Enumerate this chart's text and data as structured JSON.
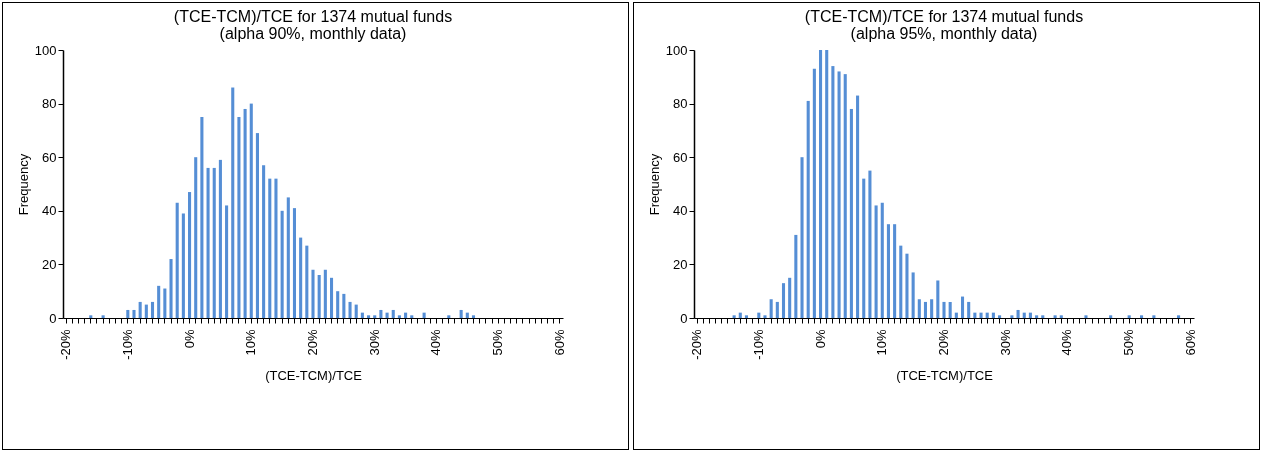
{
  "chart_data": [
    {
      "type": "bar",
      "title": "(TCE-TCM)/TCE  for 1374 mutual funds",
      "subtitle": "(alpha 90%, monthly data)",
      "xlabel": "(TCE-TCM)/TCE",
      "ylabel": "Frequency",
      "categories": [
        "-20%",
        null,
        null,
        null,
        null,
        null,
        null,
        null,
        null,
        null,
        "-10%",
        null,
        null,
        null,
        null,
        null,
        null,
        null,
        null,
        null,
        "0%",
        null,
        null,
        null,
        null,
        null,
        null,
        null,
        null,
        null,
        "10%",
        null,
        null,
        null,
        null,
        null,
        null,
        null,
        null,
        null,
        "20%",
        null,
        null,
        null,
        null,
        null,
        null,
        null,
        null,
        null,
        "30%",
        null,
        null,
        null,
        null,
        null,
        null,
        null,
        null,
        null,
        "40%",
        null,
        null,
        null,
        null,
        null,
        null,
        null,
        null,
        null,
        "50%",
        null,
        null,
        null,
        null,
        null,
        null,
        null,
        null,
        null,
        "60%"
      ],
      "values": [
        0,
        0,
        0,
        0,
        1,
        0,
        1,
        0,
        0,
        0,
        3,
        3,
        6,
        5,
        6,
        12,
        11,
        22,
        43,
        39,
        47,
        60,
        75,
        56,
        56,
        59,
        42,
        86,
        75,
        78,
        80,
        69,
        57,
        52,
        52,
        40,
        45,
        41,
        30,
        27,
        18,
        16,
        18,
        15,
        10,
        9,
        6,
        5,
        2,
        1,
        1,
        3,
        2,
        3,
        1,
        2,
        1,
        0,
        2,
        0,
        0,
        0,
        1,
        0,
        3,
        2,
        1,
        0,
        0,
        0,
        0,
        0,
        0,
        0,
        0,
        0,
        0,
        0,
        0,
        0,
        0
      ],
      "color": "#558ed5",
      "ylim": [
        0,
        100
      ],
      "yticks": [
        0,
        20,
        40,
        60,
        80,
        100
      ]
    },
    {
      "type": "bar",
      "title": "(TCE-TCM)/TCE  for 1374 mutual funds",
      "subtitle": "(alpha 95%, monthly data)",
      "xlabel": "(TCE-TCM)/TCE",
      "ylabel": "Frequency",
      "categories": [
        "-20%",
        null,
        null,
        null,
        null,
        null,
        null,
        null,
        null,
        null,
        "-10%",
        null,
        null,
        null,
        null,
        null,
        null,
        null,
        null,
        null,
        "0%",
        null,
        null,
        null,
        null,
        null,
        null,
        null,
        null,
        null,
        "10%",
        null,
        null,
        null,
        null,
        null,
        null,
        null,
        null,
        null,
        "20%",
        null,
        null,
        null,
        null,
        null,
        null,
        null,
        null,
        null,
        "30%",
        null,
        null,
        null,
        null,
        null,
        null,
        null,
        null,
        null,
        "40%",
        null,
        null,
        null,
        null,
        null,
        null,
        null,
        null,
        null,
        "50%",
        null,
        null,
        null,
        null,
        null,
        null,
        null,
        null,
        null,
        "60%"
      ],
      "values": [
        0,
        0,
        0,
        0,
        0,
        0,
        1,
        2,
        1,
        0,
        2,
        1,
        7,
        6,
        13,
        15,
        31,
        60,
        81,
        93,
        100,
        100,
        94,
        92,
        91,
        78,
        83,
        52,
        55,
        42,
        43,
        35,
        35,
        27,
        24,
        17,
        7,
        6,
        7,
        14,
        6,
        6,
        2,
        8,
        6,
        2,
        2,
        2,
        2,
        1,
        0,
        1,
        3,
        2,
        2,
        1,
        1,
        0,
        1,
        1,
        0,
        0,
        0,
        1,
        0,
        0,
        0,
        1,
        0,
        0,
        1,
        0,
        1,
        0,
        1,
        0,
        0,
        0,
        1,
        0,
        0
      ],
      "color": "#558ed5",
      "ylim": [
        0,
        100
      ],
      "yticks": [
        0,
        20,
        40,
        60,
        80,
        100
      ]
    }
  ]
}
